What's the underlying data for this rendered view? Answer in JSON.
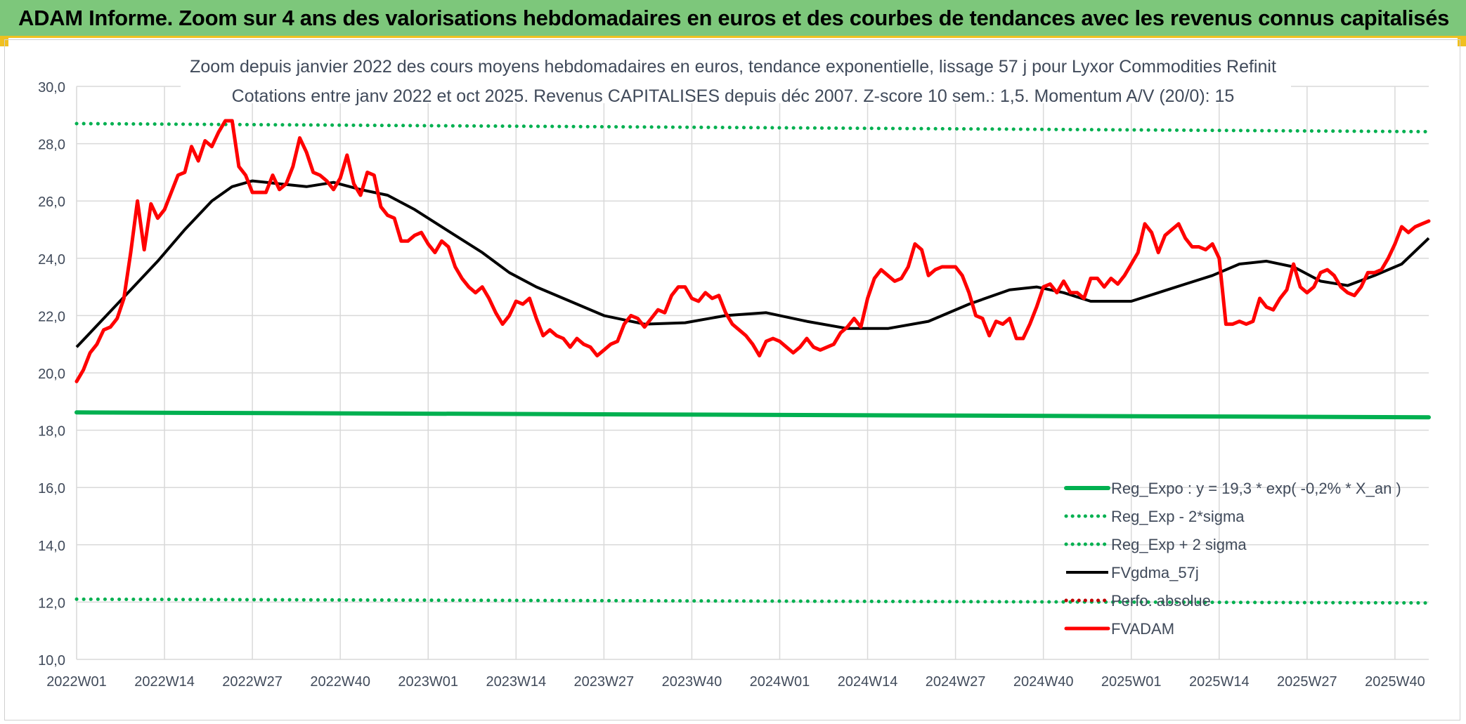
{
  "header": {
    "title": "ADAM Informe. Zoom sur 4 ans des valorisations hebdomadaires en euros et des courbes de tendances avec les revenus connus capitalisés"
  },
  "colors": {
    "header_bg": "#7dc77b",
    "regression": "#00b050",
    "fv_adam": "#ff0000",
    "fv_gdma": "#000000",
    "perfo": "#c00000"
  },
  "chart_data": {
    "type": "line",
    "title": "Zoom depuis janvier 2022 des cours moyens hebdomadaires en euros, tendance exponentielle, lissage 57 j pour Lyxor Commodities Refinit",
    "subtitle": "Cotations entre janv 2022 et oct 2025. Revenus CAPITALISES depuis déc 2007. Z-score 10 sem.: 1,5. Momentum A/V (20/0): 15",
    "xlabel": "",
    "ylabel": "",
    "ylim": [
      10,
      30
    ],
    "ytick_labels": [
      "10,0",
      "12,0",
      "14,0",
      "16,0",
      "18,0",
      "20,0",
      "22,0",
      "24,0",
      "26,0",
      "28,0",
      "30,0"
    ],
    "xlim": [
      0,
      200
    ],
    "x_tick_labels": [
      "2022W01",
      "2022W14",
      "2022W27",
      "2022W40",
      "2023W01",
      "2023W14",
      "2023W27",
      "2023W40",
      "2024W01",
      "2024W14",
      "2024W27",
      "2024W40",
      "2025W01",
      "2025W14",
      "2025W27",
      "2025W40"
    ],
    "x_tick_step_weeks": 13,
    "grid": true,
    "legend_position": "bottom-right",
    "series": [
      {
        "name": "Reg_Expo : y = 19,3 * exp( -0,2% *  X_an )",
        "style": "solid-thick",
        "color": "#00b050",
        "x": [
          0,
          200
        ],
        "values": [
          18.62,
          18.45
        ]
      },
      {
        "name": "Reg_Exp - 2*sigma",
        "style": "dotted",
        "color": "#00b050",
        "x": [
          0,
          200
        ],
        "values": [
          12.1,
          11.97
        ]
      },
      {
        "name": "Reg_Exp + 2 sigma",
        "style": "dotted",
        "color": "#00b050",
        "x": [
          0,
          200
        ],
        "values": [
          28.7,
          28.42
        ]
      },
      {
        "name": "FVgdma_57j",
        "style": "solid",
        "color": "#000000",
        "x": [
          0,
          4,
          8,
          12,
          16,
          20,
          23,
          26,
          30,
          34,
          38,
          42,
          46,
          50,
          52,
          56,
          60,
          64,
          68,
          72,
          78,
          84,
          90,
          96,
          102,
          108,
          114,
          120,
          126,
          132,
          138,
          142,
          146,
          150,
          156,
          160,
          164,
          168,
          172,
          176,
          180,
          184,
          188,
          192,
          196,
          200
        ],
        "values": [
          20.9,
          21.9,
          22.9,
          23.9,
          25.0,
          26.0,
          26.5,
          26.7,
          26.6,
          26.5,
          26.65,
          26.4,
          26.2,
          25.7,
          25.4,
          24.8,
          24.2,
          23.5,
          23.0,
          22.6,
          22.0,
          21.7,
          21.75,
          22.0,
          22.1,
          21.8,
          21.55,
          21.55,
          21.8,
          22.4,
          22.9,
          23.0,
          22.8,
          22.5,
          22.5,
          22.8,
          23.1,
          23.4,
          23.8,
          23.9,
          23.7,
          23.2,
          23.05,
          23.4,
          23.8,
          24.7
        ]
      },
      {
        "name": "Perfo. absolue",
        "style": "dotted",
        "color": "#c00000",
        "x": [],
        "values": []
      },
      {
        "name": "FVADAM",
        "style": "solid-thick",
        "color": "#ff0000",
        "x": [
          0,
          1,
          2,
          3,
          4,
          5,
          6,
          7,
          8,
          9,
          10,
          11,
          12,
          13,
          14,
          15,
          16,
          17,
          18,
          19,
          20,
          21,
          22,
          23,
          24,
          25,
          26,
          27,
          28,
          29,
          30,
          31,
          32,
          33,
          34,
          35,
          36,
          37,
          38,
          39,
          40,
          41,
          42,
          43,
          44,
          45,
          46,
          47,
          48,
          49,
          50,
          51,
          52,
          53,
          54,
          55,
          56,
          57,
          58,
          59,
          60,
          61,
          62,
          63,
          64,
          65,
          66,
          67,
          68,
          69,
          70,
          71,
          72,
          73,
          74,
          75,
          76,
          77,
          78,
          79,
          80,
          81,
          82,
          83,
          84,
          85,
          86,
          87,
          88,
          89,
          90,
          91,
          92,
          93,
          94,
          95,
          96,
          97,
          98,
          99,
          100,
          101,
          102,
          103,
          104,
          105,
          106,
          107,
          108,
          109,
          110,
          111,
          112,
          113,
          114,
          115,
          116,
          117,
          118,
          119,
          120,
          121,
          122,
          123,
          124,
          125,
          126,
          127,
          128,
          129,
          130,
          131,
          132,
          133,
          134,
          135,
          136,
          137,
          138,
          139,
          140,
          141,
          142,
          143,
          144,
          145,
          146,
          147,
          148,
          149,
          150,
          151,
          152,
          153,
          154,
          155,
          156,
          157,
          158,
          159,
          160,
          161,
          162,
          163,
          164,
          165,
          166,
          167,
          168,
          169,
          170,
          171,
          172,
          173,
          174,
          175,
          176,
          177,
          178,
          179,
          180,
          181,
          182,
          183,
          184,
          185,
          186,
          187,
          188,
          189,
          190,
          191,
          192,
          193,
          194,
          195,
          196,
          197,
          198,
          199,
          200
        ],
        "values": [
          19.7,
          20.1,
          20.7,
          21.0,
          21.5,
          21.6,
          21.9,
          22.6,
          24.2,
          26.0,
          24.3,
          25.9,
          25.4,
          25.7,
          26.3,
          26.9,
          27.0,
          27.9,
          27.4,
          28.1,
          27.9,
          28.4,
          28.8,
          28.8,
          27.2,
          26.9,
          26.3,
          26.3,
          26.3,
          26.9,
          26.4,
          26.6,
          27.2,
          28.2,
          27.7,
          27.0,
          26.9,
          26.7,
          26.4,
          26.8,
          27.6,
          26.6,
          26.2,
          27.0,
          26.9,
          25.8,
          25.5,
          25.4,
          24.6,
          24.6,
          24.8,
          24.9,
          24.5,
          24.2,
          24.6,
          24.4,
          23.7,
          23.3,
          23.0,
          22.8,
          23.0,
          22.6,
          22.1,
          21.7,
          22.0,
          22.5,
          22.4,
          22.6,
          21.9,
          21.3,
          21.5,
          21.3,
          21.2,
          20.9,
          21.2,
          21.0,
          20.9,
          20.6,
          20.8,
          21.0,
          21.1,
          21.7,
          22.0,
          21.9,
          21.6,
          21.9,
          22.2,
          22.1,
          22.7,
          23.0,
          23.0,
          22.6,
          22.5,
          22.8,
          22.6,
          22.7,
          22.1,
          21.7,
          21.5,
          21.3,
          21.0,
          20.6,
          21.1,
          21.2,
          21.1,
          20.9,
          20.7,
          20.9,
          21.2,
          20.9,
          20.8,
          20.9,
          21.0,
          21.4,
          21.6,
          21.9,
          21.6,
          22.6,
          23.3,
          23.6,
          23.4,
          23.2,
          23.3,
          23.7,
          24.5,
          24.3,
          23.4,
          23.6,
          23.7,
          23.7,
          23.7,
          23.4,
          22.8,
          22.0,
          21.9,
          21.3,
          21.8,
          21.7,
          21.9,
          21.2,
          21.2,
          21.7,
          22.3,
          23.0,
          23.1,
          22.8,
          23.2,
          22.8,
          22.8,
          22.6,
          23.3,
          23.3,
          23.0,
          23.3,
          23.1,
          23.4,
          23.8,
          24.2,
          25.2,
          24.9,
          24.2,
          24.8,
          25.0,
          25.2,
          24.7,
          24.4,
          24.4,
          24.3,
          24.5,
          24.0,
          21.7,
          21.7,
          21.8,
          21.7,
          21.8,
          22.6,
          22.3,
          22.2,
          22.6,
          22.9,
          23.8,
          23.0,
          22.8,
          23.0,
          23.5,
          23.6,
          23.4,
          23.0,
          22.8,
          22.7,
          23.0,
          23.5,
          23.5,
          23.6,
          24.0,
          24.5,
          25.1,
          24.9,
          25.1,
          25.2,
          25.3
        ]
      }
    ]
  }
}
